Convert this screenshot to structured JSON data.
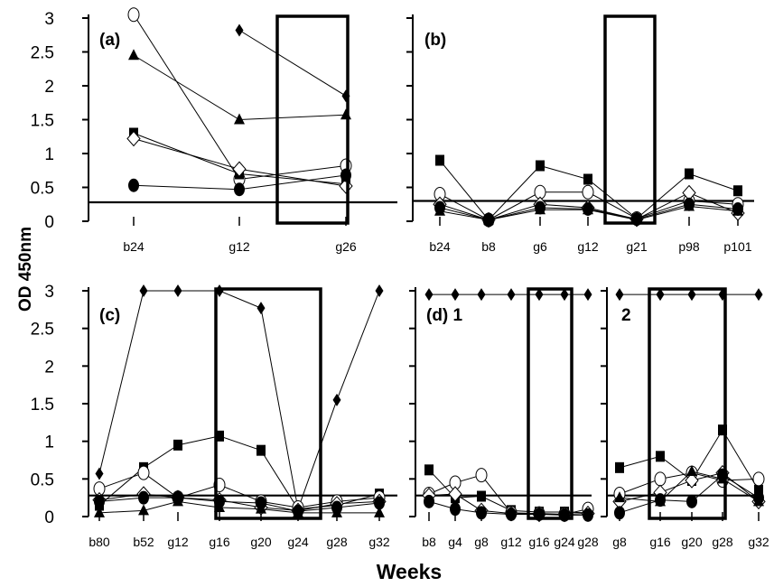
{
  "figure": {
    "ylabel": "OD 450nm",
    "xlabel": "Weeks"
  },
  "chart_data": [
    {
      "type": "line",
      "panel": "(a)",
      "x": [
        "b24",
        "g12",
        "g26"
      ],
      "ylim": [
        0,
        3
      ],
      "yticks": [
        "0",
        "0.5",
        "1",
        "1.5",
        "2",
        "2.5",
        "3"
      ],
      "cutoff": 0.28,
      "box": [
        "g12",
        "g26"
      ],
      "series": [
        {
          "marker": "diamond-filled",
          "values": [
            null,
            2.82,
            1.85
          ]
        },
        {
          "marker": "triangle",
          "values": [
            2.45,
            1.5,
            1.57
          ]
        },
        {
          "marker": "circle-open",
          "values": [
            3.05,
            0.62,
            0.82
          ]
        },
        {
          "marker": "square",
          "values": [
            1.3,
            0.7,
            0.55
          ]
        },
        {
          "marker": "diamond-open",
          "values": [
            1.22,
            0.77,
            0.52
          ]
        },
        {
          "marker": "circle-filled",
          "values": [
            0.53,
            0.47,
            0.68
          ]
        }
      ]
    },
    {
      "type": "line",
      "panel": "(b)",
      "x": [
        "b24",
        "b8",
        "g6",
        "g12",
        "g21",
        "p98",
        "p101"
      ],
      "ylim": [
        0,
        3
      ],
      "cutoff": 0.3,
      "box": [
        "g12",
        "p98"
      ],
      "series": [
        {
          "marker": "square",
          "values": [
            0.9,
            0.02,
            0.82,
            0.62,
            0.04,
            0.7,
            0.45
          ]
        },
        {
          "marker": "circle-open",
          "values": [
            0.4,
            0.02,
            0.43,
            0.43,
            0.04,
            0.3,
            0.25
          ]
        },
        {
          "marker": "diamond-open",
          "values": [
            0.25,
            0.02,
            0.25,
            0.2,
            0.03,
            0.42,
            0.12
          ]
        },
        {
          "marker": "circle-filled",
          "values": [
            0.2,
            0.02,
            0.2,
            0.18,
            0.03,
            0.25,
            0.18
          ]
        },
        {
          "marker": "triangle",
          "values": [
            0.15,
            0.02,
            0.17,
            0.17,
            0.02,
            0.22,
            0.15
          ]
        }
      ]
    },
    {
      "type": "line",
      "panel": "(c)",
      "x": [
        "b80",
        "b52",
        "g12",
        "g16",
        "g20",
        "g24",
        "g28",
        "g32"
      ],
      "ylim": [
        0,
        3
      ],
      "yticks": [
        "0",
        "0.5",
        "1",
        "1.5",
        "2",
        "2.5",
        "3"
      ],
      "cutoff": 0.28,
      "box": [
        "g16",
        "g28"
      ],
      "series": [
        {
          "marker": "diamond-filled",
          "values": [
            0.57,
            3.0,
            3.0,
            3.0,
            2.77,
            0.1,
            1.55,
            3.0
          ]
        },
        {
          "marker": "square",
          "values": [
            0.15,
            0.65,
            0.95,
            1.07,
            0.88,
            0.1,
            0.15,
            0.3
          ]
        },
        {
          "marker": "circle-open",
          "values": [
            0.37,
            0.58,
            0.25,
            0.42,
            0.2,
            0.12,
            0.2,
            0.25
          ]
        },
        {
          "marker": "diamond-open",
          "values": [
            0.22,
            0.3,
            0.25,
            0.22,
            0.12,
            0.08,
            0.17,
            0.2
          ]
        },
        {
          "marker": "circle-filled",
          "values": [
            0.2,
            0.25,
            0.25,
            0.2,
            0.18,
            0.07,
            0.12,
            0.18
          ]
        },
        {
          "marker": "triangle",
          "values": [
            0.05,
            0.08,
            0.2,
            0.12,
            0.1,
            0.05,
            0.05,
            0.05
          ]
        }
      ]
    },
    {
      "type": "line",
      "panel": "(d) 1",
      "x": [
        "b8",
        "g4",
        "g8",
        "g12",
        "g16",
        "g24",
        "g28"
      ],
      "ylim": [
        0,
        3
      ],
      "cutoff": 0.28,
      "box": [
        "g16",
        "g24"
      ],
      "series": [
        {
          "marker": "diamond-filled",
          "values": [
            2.95,
            2.95,
            2.95,
            2.95,
            2.95,
            2.95,
            2.95
          ]
        },
        {
          "marker": "square",
          "values": [
            0.62,
            0.25,
            0.27,
            0.08,
            0.06,
            0.06,
            0.05
          ]
        },
        {
          "marker": "circle-open",
          "values": [
            0.3,
            0.45,
            0.55,
            0.05,
            0.04,
            0.03,
            0.1
          ]
        },
        {
          "marker": "diamond-open",
          "values": [
            0.28,
            0.3,
            0.08,
            0.04,
            0.03,
            0.03,
            0.04
          ]
        },
        {
          "marker": "circle-filled",
          "values": [
            0.2,
            0.1,
            0.05,
            0.03,
            0.03,
            0.02,
            0.02
          ]
        }
      ]
    },
    {
      "type": "line",
      "panel": "2",
      "x": [
        "g8",
        "g16",
        "g20",
        "g28",
        "g32"
      ],
      "ylim": [
        0,
        3
      ],
      "cutoff": 0.28,
      "box": [
        "g16",
        "g28"
      ],
      "series": [
        {
          "marker": "diamond-filled",
          "values": [
            2.95,
            2.95,
            2.95,
            2.95,
            2.95
          ]
        },
        {
          "marker": "square",
          "values": [
            0.65,
            0.8,
            0.48,
            1.15,
            0.35
          ]
        },
        {
          "marker": "circle-open",
          "values": [
            0.3,
            0.5,
            0.58,
            0.48,
            0.5
          ]
        },
        {
          "marker": "diamond-open",
          "values": [
            0.2,
            0.32,
            0.48,
            0.58,
            0.2
          ]
        },
        {
          "marker": "circle-filled",
          "values": [
            0.05,
            0.22,
            0.2,
            0.55,
            0.25
          ]
        },
        {
          "marker": "triangle",
          "values": [
            0.25,
            0.2,
            0.6,
            0.5,
            0.2
          ]
        }
      ]
    }
  ]
}
